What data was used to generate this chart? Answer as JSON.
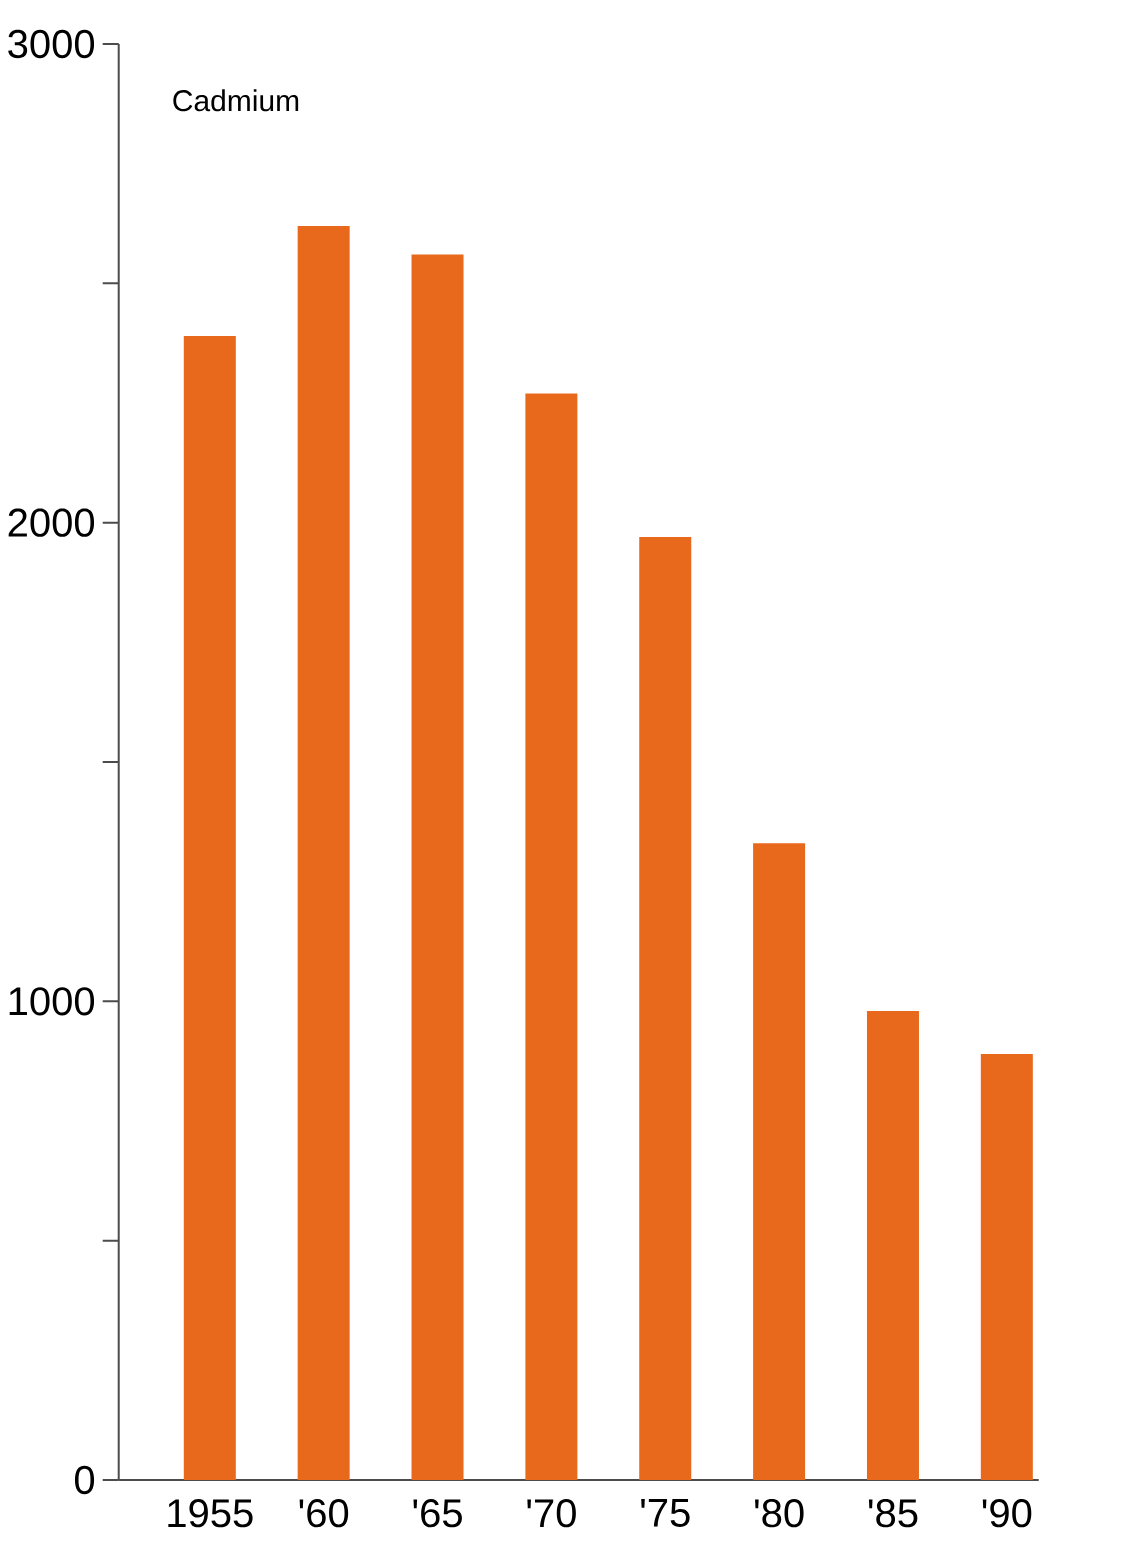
{
  "chart_data": {
    "type": "bar",
    "title": "Cadmium",
    "categories": [
      "1955",
      "'60",
      "'65",
      "'70",
      "'75",
      "'80",
      "'85",
      "'90"
    ],
    "values": [
      2390,
      2620,
      2560,
      2270,
      1970,
      1330,
      980,
      890
    ],
    "color": "#e8691c",
    "ylim": [
      0,
      3000
    ],
    "yticks": [
      0,
      {
        "value": 500,
        "label": null
      },
      1000,
      {
        "value": 1500,
        "label": null
      },
      2000,
      {
        "value": 2500,
        "label": null
      },
      3000
    ]
  }
}
